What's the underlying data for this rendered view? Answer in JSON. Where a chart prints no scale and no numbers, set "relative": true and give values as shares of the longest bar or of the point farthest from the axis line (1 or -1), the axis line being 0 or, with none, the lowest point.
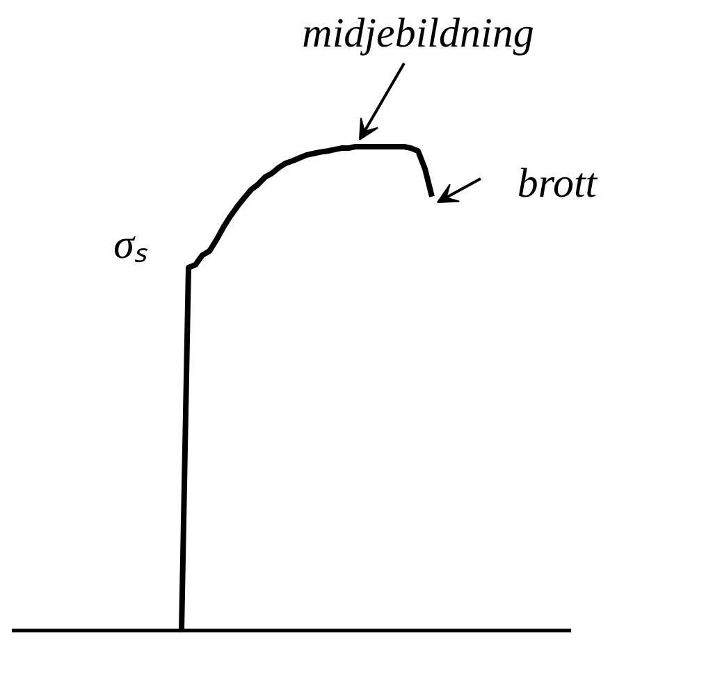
{
  "chart_data": {
    "type": "line",
    "relative": true,
    "grid": false,
    "marker": "none",
    "line_style": "solid",
    "tick_labels": false,
    "categories": [
      null,
      null,
      null,
      null,
      null,
      null,
      null,
      null,
      null,
      null,
      null,
      null,
      null,
      null,
      null,
      null,
      null,
      null,
      null,
      null,
      null,
      null,
      null,
      null,
      null,
      null,
      null,
      null,
      null,
      null,
      null,
      null,
      null,
      null,
      null,
      null,
      null
    ],
    "series": [
      {
        "color": "#000000",
        "values": [
          0,
          0.75,
          0.756,
          0.776,
          0.784,
          0.807,
          0.833,
          0.856,
          0.876,
          0.894,
          0.911,
          0.922,
          0.937,
          0.945,
          0.957,
          0.966,
          0.971,
          0.977,
          0.983,
          0.986,
          0.989,
          0.991,
          0.994,
          0.997,
          0.997,
          1,
          1,
          1,
          1,
          1,
          1,
          1,
          1,
          0.997,
          0.991,
          0.954,
          0.897
        ]
      }
    ],
    "annotations": [
      "midjebildning",
      "brott",
      "σₛ"
    ]
  }
}
